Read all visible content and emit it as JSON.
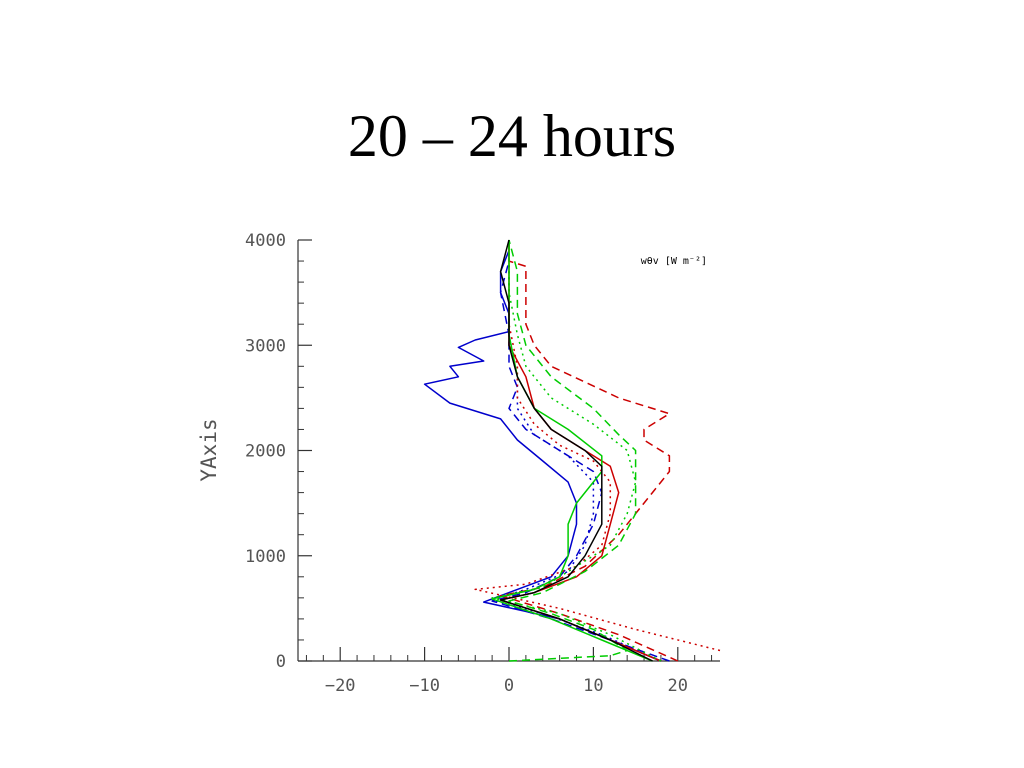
{
  "title": "20 – 24 hours",
  "chart_data": {
    "type": "line",
    "xlabel": "",
    "ylabel": "YAxis",
    "annotation": "wθv [W m⁻²]",
    "xlim": [
      -25,
      25
    ],
    "ylim": [
      0,
      4000
    ],
    "xticks": [
      -20,
      -10,
      0,
      10,
      20
    ],
    "yticks": [
      0,
      1000,
      2000,
      3000,
      4000
    ],
    "grid": false,
    "series": [
      {
        "color": "#0000cc",
        "dash": "solid",
        "points": [
          [
            18,
            0
          ],
          [
            12,
            200
          ],
          [
            6,
            400
          ],
          [
            -3,
            560
          ],
          [
            0,
            650
          ],
          [
            5,
            800
          ],
          [
            7,
            1000
          ],
          [
            8,
            1300
          ],
          [
            8,
            1500
          ],
          [
            7,
            1700
          ],
          [
            4,
            1900
          ],
          [
            1,
            2100
          ],
          [
            -1,
            2300
          ],
          [
            -7,
            2450
          ],
          [
            -10,
            2630
          ],
          [
            -6,
            2700
          ],
          [
            -7,
            2800
          ],
          [
            -3,
            2850
          ],
          [
            -6,
            2980
          ],
          [
            -4,
            3050
          ],
          [
            0,
            3130
          ],
          [
            0,
            3300
          ],
          [
            -1,
            3500
          ],
          [
            -1,
            3700
          ],
          [
            0,
            3900
          ],
          [
            0,
            4000
          ]
        ]
      },
      {
        "color": "#0000cc",
        "dash": "8,5",
        "points": [
          [
            19,
            0
          ],
          [
            12,
            200
          ],
          [
            5,
            400
          ],
          [
            -2,
            570
          ],
          [
            2,
            650
          ],
          [
            6,
            800
          ],
          [
            8,
            1000
          ],
          [
            10,
            1300
          ],
          [
            11,
            1600
          ],
          [
            10,
            1800
          ],
          [
            6,
            2000
          ],
          [
            2,
            2200
          ],
          [
            0,
            2400
          ],
          [
            1,
            2600
          ],
          [
            0,
            2800
          ],
          [
            0,
            3100
          ],
          [
            -1,
            3500
          ],
          [
            0,
            3800
          ],
          [
            0,
            4000
          ]
        ]
      },
      {
        "color": "#0000cc",
        "dash": "2,4",
        "points": [
          [
            18,
            0
          ],
          [
            11,
            250
          ],
          [
            4,
            450
          ],
          [
            -2,
            580
          ],
          [
            2,
            680
          ],
          [
            7,
            850
          ],
          [
            9,
            1100
          ],
          [
            10,
            1400
          ],
          [
            10,
            1700
          ],
          [
            7,
            1950
          ],
          [
            3,
            2150
          ],
          [
            1,
            2400
          ],
          [
            1,
            2700
          ],
          [
            0,
            3100
          ],
          [
            0,
            3600
          ],
          [
            0,
            4000
          ]
        ]
      },
      {
        "color": "#cc0000",
        "dash": "solid",
        "points": [
          [
            18,
            0
          ],
          [
            12,
            200
          ],
          [
            6,
            400
          ],
          [
            -1,
            580
          ],
          [
            3,
            650
          ],
          [
            8,
            800
          ],
          [
            11,
            1000
          ],
          [
            12,
            1300
          ],
          [
            13,
            1600
          ],
          [
            12,
            1850
          ],
          [
            8,
            2050
          ],
          [
            5,
            2200
          ],
          [
            3,
            2400
          ],
          [
            2,
            2700
          ],
          [
            0,
            3000
          ],
          [
            0,
            3500
          ],
          [
            0,
            4000
          ]
        ]
      },
      {
        "color": "#cc0000",
        "dash": "8,5",
        "points": [
          [
            20,
            0
          ],
          [
            13,
            250
          ],
          [
            6,
            450
          ],
          [
            -1,
            620
          ],
          [
            4,
            700
          ],
          [
            9,
            900
          ],
          [
            13,
            1200
          ],
          [
            16,
            1500
          ],
          [
            19,
            1800
          ],
          [
            19,
            1950
          ],
          [
            16,
            2100
          ],
          [
            16,
            2200
          ],
          [
            19,
            2350
          ],
          [
            13,
            2500
          ],
          [
            9,
            2650
          ],
          [
            5,
            2800
          ],
          [
            3,
            3000
          ],
          [
            2,
            3200
          ],
          [
            2,
            3500
          ],
          [
            2,
            3750
          ],
          [
            0,
            3800
          ],
          [
            0,
            4000
          ]
        ]
      },
      {
        "color": "#cc0000",
        "dash": "2,4",
        "points": [
          [
            25,
            100
          ],
          [
            15,
            300
          ],
          [
            6,
            500
          ],
          [
            -4,
            680
          ],
          [
            2,
            730
          ],
          [
            8,
            900
          ],
          [
            11,
            1100
          ],
          [
            12,
            1400
          ],
          [
            12,
            1700
          ],
          [
            10,
            1900
          ],
          [
            6,
            2050
          ],
          [
            3,
            2250
          ],
          [
            1,
            2500
          ],
          [
            1,
            2800
          ],
          [
            0,
            3200
          ],
          [
            0,
            3700
          ],
          [
            0,
            4000
          ]
        ]
      },
      {
        "color": "#00cc00",
        "dash": "solid",
        "points": [
          [
            17,
            0
          ],
          [
            11,
            200
          ],
          [
            5,
            400
          ],
          [
            -2,
            590
          ],
          [
            3,
            680
          ],
          [
            6,
            800
          ],
          [
            7,
            1000
          ],
          [
            7,
            1300
          ],
          [
            8,
            1500
          ],
          [
            11,
            1800
          ],
          [
            11,
            1950
          ],
          [
            7,
            2200
          ],
          [
            3,
            2400
          ],
          [
            1,
            2700
          ],
          [
            0,
            3100
          ],
          [
            0,
            3600
          ],
          [
            0,
            4000
          ]
        ]
      },
      {
        "color": "#00cc00",
        "dash": "8,5",
        "points": [
          [
            0,
            0
          ],
          [
            12,
            50
          ],
          [
            14,
            100
          ],
          [
            10,
            300
          ],
          [
            5,
            450
          ],
          [
            0,
            570
          ],
          [
            4,
            650
          ],
          [
            9,
            850
          ],
          [
            13,
            1100
          ],
          [
            15,
            1400
          ],
          [
            15,
            1700
          ],
          [
            15,
            2000
          ],
          [
            13,
            2150
          ],
          [
            10,
            2400
          ],
          [
            5,
            2700
          ],
          [
            2,
            3000
          ],
          [
            1,
            3300
          ],
          [
            1,
            3700
          ],
          [
            0,
            4000
          ]
        ]
      },
      {
        "color": "#00cc00",
        "dash": "2,4",
        "points": [
          [
            18,
            0
          ],
          [
            12,
            250
          ],
          [
            6,
            450
          ],
          [
            -2,
            600
          ],
          [
            4,
            700
          ],
          [
            8,
            900
          ],
          [
            12,
            1100
          ],
          [
            14,
            1400
          ],
          [
            15,
            1700
          ],
          [
            14,
            2000
          ],
          [
            10,
            2250
          ],
          [
            5,
            2500
          ],
          [
            2,
            2800
          ],
          [
            1,
            3100
          ],
          [
            0,
            3500
          ],
          [
            0,
            4000
          ]
        ]
      },
      {
        "color": "#000000",
        "dash": "solid",
        "points": [
          [
            17,
            0
          ],
          [
            12,
            200
          ],
          [
            6,
            400
          ],
          [
            -1,
            580
          ],
          [
            3,
            650
          ],
          [
            7,
            800
          ],
          [
            9,
            1000
          ],
          [
            11,
            1300
          ],
          [
            11,
            1600
          ],
          [
            11,
            1850
          ],
          [
            9,
            2000
          ],
          [
            5,
            2200
          ],
          [
            3,
            2400
          ],
          [
            1,
            2700
          ],
          [
            0,
            3000
          ],
          [
            0,
            3400
          ],
          [
            -1,
            3700
          ],
          [
            0,
            4000
          ]
        ]
      }
    ]
  }
}
